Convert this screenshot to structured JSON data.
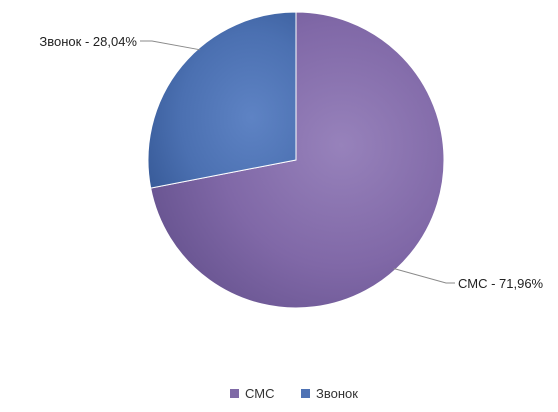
{
  "chart_data": {
    "type": "pie",
    "slices": [
      {
        "name": "СМС",
        "value": 71.96,
        "label": "СМС - 71,96%",
        "color": "#7f6aa6",
        "legend_label": "СМС"
      },
      {
        "name": "Звонок",
        "value": 28.04,
        "label": "Звонок - 28,04%",
        "color": "#4e72b4",
        "legend_label": "Звонок"
      }
    ],
    "start_angle": "12 o'clock",
    "direction": "clockwise",
    "legend_position": "bottom"
  },
  "colors": {
    "label_text": "#222222",
    "leader_line": "#8a8a8a",
    "legend_text": "#333333"
  }
}
